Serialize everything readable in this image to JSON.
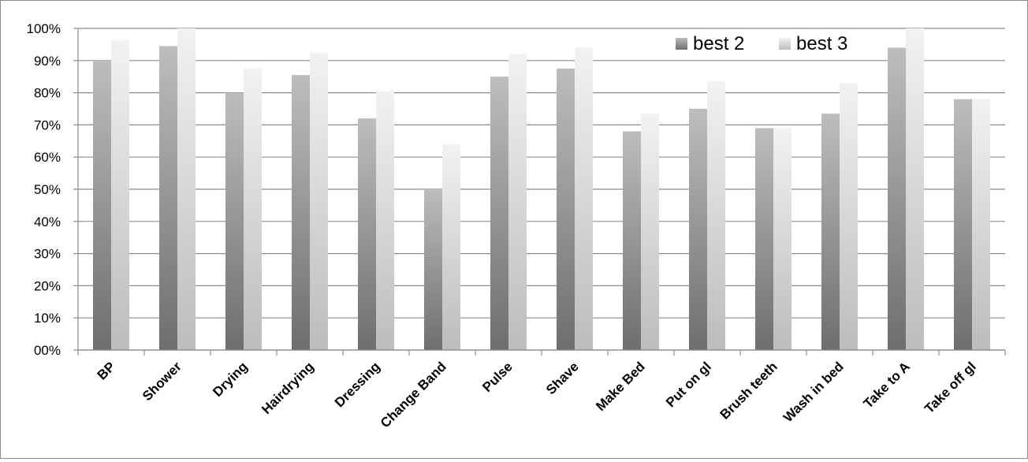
{
  "chart_data": {
    "type": "bar",
    "categories": [
      "BP",
      "Shower",
      "Drying",
      "Hairdrying",
      "Dressing",
      "Change Band",
      "Pulse",
      "Shave",
      "Make Bed",
      "Put on gl",
      "Brush teeth",
      "Wash in bed",
      "Take to A",
      "Take off gl"
    ],
    "series": [
      {
        "name": "best 2",
        "values": [
          0.9,
          0.945,
          0.8,
          0.855,
          0.72,
          0.5,
          0.85,
          0.875,
          0.68,
          0.75,
          0.69,
          0.735,
          0.94,
          0.78
        ]
      },
      {
        "name": "best 3",
        "values": [
          0.965,
          1.0,
          0.875,
          0.925,
          0.805,
          0.64,
          0.92,
          0.94,
          0.735,
          0.835,
          0.69,
          0.83,
          1.0,
          0.78
        ]
      }
    ],
    "ylim": [
      0,
      1
    ],
    "yticks": [
      "00%",
      "10%",
      "20%",
      "30%",
      "40%",
      "50%",
      "60%",
      "70%",
      "80%",
      "90%",
      "100%"
    ],
    "grid": true,
    "legend_position": "top-right",
    "colors": {
      "best 2": {
        "top": "#bdbdbd",
        "bottom": "#6e6e6e"
      },
      "best 3": {
        "top": "#f2f2f2",
        "bottom": "#bcbcbc"
      },
      "gridline": "#8c8c8c",
      "axis": "#8c8c8c"
    }
  }
}
